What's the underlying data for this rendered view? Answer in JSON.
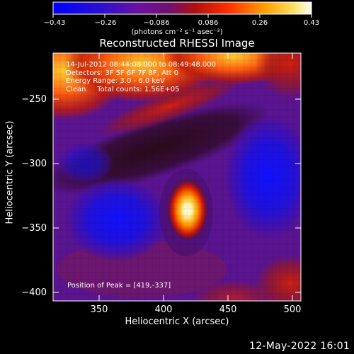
{
  "figure": {
    "title": "Reconstructed RHESSI Image",
    "xlabel": "Heliocentric X (arcsec)",
    "ylabel": "Heliocentric Y (arcsec)",
    "x_ticks": [
      "350",
      "400",
      "450",
      "500"
    ],
    "y_ticks": [
      "−250",
      "−300",
      "−350",
      "−400"
    ],
    "x_range": [
      316,
      508
    ],
    "y_range": [
      -405,
      -222
    ]
  },
  "colorbar": {
    "ticks": [
      "−0.43",
      "−0.26",
      "−0.086",
      "0.086",
      "0.26",
      "0.43"
    ],
    "units": "(photons cm⁻² s⁻¹ asec⁻²)",
    "range": [
      -0.43,
      0.43
    ]
  },
  "annotation": {
    "time_range": "14-Jul-2012 08:44:08.000 to 08:49:48.000",
    "detectors": "Detectors: 3F 5F 6F 7F 8F, Att 0",
    "energy": "Energy Range: 3.0 - 6.0 keV",
    "clean": "Clean     Total counts: 1.56E+05",
    "peak": "Position of Peak = [419,-337]"
  },
  "peak": {
    "x": 419,
    "y": -337
  },
  "timestamp": "12-May-2022 16:01"
}
